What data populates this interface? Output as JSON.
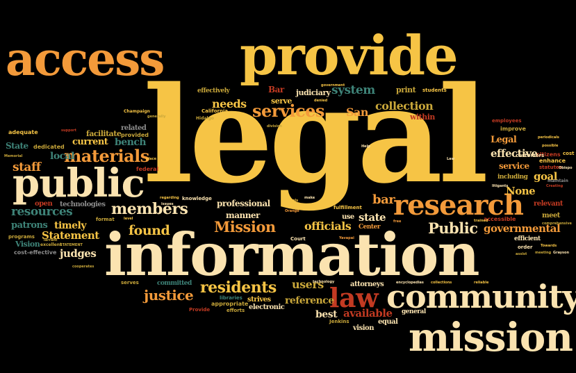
{
  "palette": {
    "background": "#000000",
    "gold": "#F6C445",
    "orange": "#F39A3A",
    "cream": "#FBE3B0",
    "red": "#C23A22",
    "teal": "#3E8378",
    "olive": "#C9A73A",
    "gray": "#8C8C8C"
  },
  "words": {
    "legal": "legal",
    "information": "information",
    "provide": "provide",
    "access": "access",
    "public": "public",
    "community": "community",
    "mission": "mission",
    "research": "research",
    "law": "law",
    "services": "services",
    "materials": "materials",
    "members": "members",
    "Mission": "Mission",
    "residents": "residents",
    "justice": "justice",
    "Public": "Public",
    "system": "system",
    "collection": "collection",
    "needs": "needs",
    "San": "San",
    "resources": "resources",
    "staff": "staff",
    "found": "found",
    "officials": "officials",
    "governmental": "governmental",
    "Statement": "Statement",
    "judges": "judges",
    "bar": "bar",
    "state": "state",
    "users": "users",
    "reference": "reference",
    "available": "available",
    "best": "best",
    "effective": "effective",
    "goal": "goal",
    "None": "None",
    "Legal": "Legal",
    "service": "service",
    "timely": "timely",
    "patrons": "patrons",
    "bench": "bench",
    "current": "current",
    "local": "local",
    "professional": "professional",
    "manner": "manner",
    "Bar": "Bar",
    "judiciary": "judiciary",
    "serve": "serve",
    "print": "print",
    "within": "within",
    "effectively": "effectively",
    "State": "State",
    "adequate": "adequate",
    "facilitate": "facilitate",
    "related": "related",
    "provided": "provided",
    "dedicated": "dedicated",
    "open": "open",
    "technologies": "technologies",
    "Vision": "Vision",
    "programs": "programs",
    "cost_effective": "cost-effective",
    "committed": "committed",
    "strives": "strives",
    "electronic": "electronic",
    "appropriate": "appropriate",
    "efforts": "efforts",
    "libraries": "libraries",
    "Provide": "Provide",
    "attorneys": "attorneys",
    "vision": "vision",
    "equal": "equal",
    "general": "general",
    "Jenkins": "Jenkins",
    "Court": "Court",
    "Center": "Center",
    "use": "use",
    "fulfillment": "fulfillment",
    "including": "including",
    "relevant": "relevant",
    "efficient": "efficient",
    "accessible": "accessible",
    "meet": "meet",
    "order": "order",
    "enhance": "enhance",
    "citizens": "citizens",
    "improve": "improve",
    "employees": "employees",
    "customers": "customers",
    "statutes": "statutes",
    "cost": "cost",
    "maintain": "maintain",
    "students": "students",
    "California": "California",
    "Champaign": "Champaign",
    "Hidalgo": "Hidalgo",
    "knowledge": "knowledge",
    "federal": "federal",
    "format": "format",
    "serves": "serves",
    "excellent": "excellent",
    "Memorial": "Memorial",
    "support": "support",
    "generally": "generally",
    "technology": "technology",
    "encyclopedias": "encyclopedias",
    "collections": "collections",
    "reliable": "reliable",
    "Towards": "Towards",
    "Grayson": "Grayson",
    "periodicals": "periodicals",
    "possible": "possible",
    "Obispo": "Obispo",
    "Creating": "Creating",
    "comprehensive": "comprehensive",
    "meeting": "meeting",
    "assist": "assist",
    "litigants": "litigants",
    "trained": "trained",
    "regarding": "regarding",
    "issues": "issues",
    "level": "level",
    "schools": "schools",
    "make": "make",
    "Help": "Help",
    "Law": "Law",
    "Tarrant": "Tarrant",
    "STATEMENT": "STATEMENT",
    "Yavapai": "Yavapai",
    "free": "free",
    "government": "government",
    "denied": "denied",
    "division": "division",
    "place": "place",
    "Orange": "Orange",
    "cooperates": "cooperates"
  }
}
